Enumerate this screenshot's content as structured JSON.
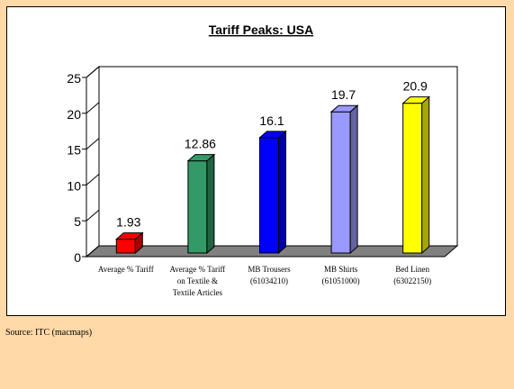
{
  "chart_data": {
    "type": "bar",
    "title": "Tariff Peaks: USA",
    "categories": [
      [
        "Average % Tariff"
      ],
      [
        "Average % Tariff",
        "on Textile &",
        "Textile Articles"
      ],
      [
        "MB  Trousers",
        "(61034210)"
      ],
      [
        "MB Shirts",
        "(61051000)"
      ],
      [
        "Bed Linen",
        "(63022150)"
      ]
    ],
    "values": [
      1.93,
      12.86,
      16.1,
      19.7,
      20.9
    ],
    "value_labels": [
      "1.93",
      "12.86",
      "16.1",
      "19.7",
      "20.9"
    ],
    "colors": [
      "#FF0000",
      "#339966",
      "#0000FF",
      "#9999FF",
      "#FFFF00"
    ],
    "ylim": [
      0,
      25
    ],
    "yticks": [
      "0",
      "5",
      "10",
      "15",
      "20",
      "25"
    ],
    "xlabel": "",
    "ylabel": "",
    "grid": false,
    "legend": "none",
    "floor_color": "#808080",
    "wall_color": "#FFFFFF"
  },
  "footer": {
    "source": "Source: ITC (macmaps)"
  }
}
